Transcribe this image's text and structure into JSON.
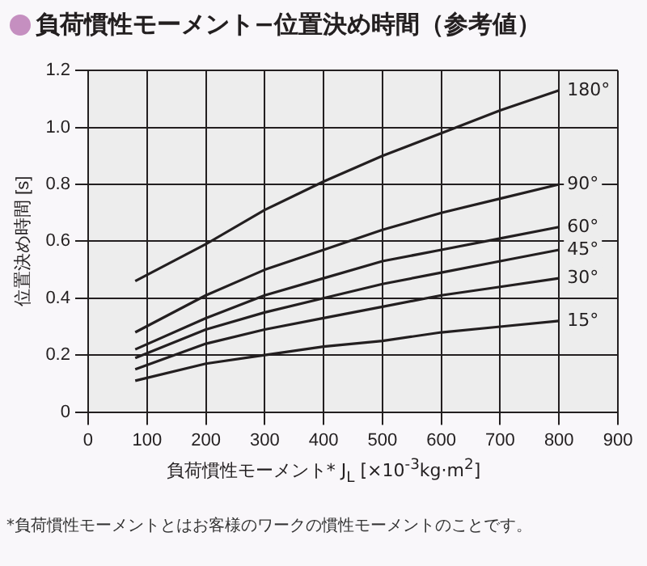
{
  "chart_data": {
    "type": "line",
    "title": "負荷慣性モーメント−位置決め時間（参考値）",
    "xlabel": "負荷慣性モーメント* J$_{L}$ [×10$^{-3}$kg·m$^{2}$]",
    "ylabel": "位置決め時間 [s]",
    "x": [
      80,
      200,
      300,
      400,
      500,
      600,
      700,
      800
    ],
    "series": [
      {
        "name": "180°",
        "color": "#231f20",
        "values": [
          0.46,
          0.59,
          0.71,
          0.81,
          0.9,
          0.98,
          1.06,
          1.13
        ]
      },
      {
        "name": "90°",
        "color": "#231f20",
        "values": [
          0.28,
          0.41,
          0.5,
          0.57,
          0.64,
          0.7,
          0.75,
          0.8
        ]
      },
      {
        "name": "60°",
        "color": "#231f20",
        "values": [
          0.22,
          0.33,
          0.41,
          0.47,
          0.53,
          0.57,
          0.61,
          0.65
        ]
      },
      {
        "name": "45°",
        "color": "#231f20",
        "values": [
          0.19,
          0.29,
          0.35,
          0.4,
          0.45,
          0.49,
          0.53,
          0.57
        ]
      },
      {
        "name": "30°",
        "color": "#231f20",
        "values": [
          0.15,
          0.24,
          0.29,
          0.33,
          0.37,
          0.41,
          0.44,
          0.47
        ]
      },
      {
        "name": "15°",
        "color": "#231f20",
        "values": [
          0.11,
          0.17,
          0.2,
          0.23,
          0.25,
          0.28,
          0.3,
          0.32
        ]
      }
    ],
    "xlim": [
      0,
      900
    ],
    "xticks": [
      0,
      100,
      200,
      300,
      400,
      500,
      600,
      700,
      800,
      900
    ],
    "ylim": [
      0,
      1.2
    ],
    "yticks": [
      0,
      {
        "value": 0.2,
        "label": "0.2"
      },
      {
        "value": 0.4,
        "label": "0.4"
      },
      {
        "value": 0.6,
        "label": "0.6"
      },
      {
        "value": 0.8,
        "label": "0.8"
      },
      {
        "value": 1,
        "label": "1.0"
      },
      {
        "value": 1.2,
        "label": "1.2"
      }
    ],
    "grid": true,
    "legend": false,
    "marker": "none",
    "line_style": "solid",
    "annotations": [
      "*負荷慣性モーメントとはお客様のワークの慣性モーメントのことです。"
    ]
  }
}
